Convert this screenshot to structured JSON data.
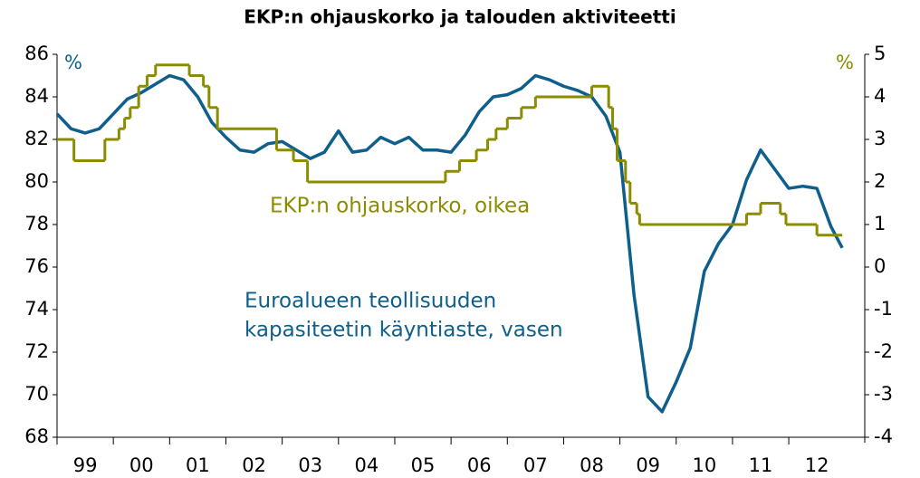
{
  "chart_data": {
    "type": "line",
    "title": "EKP:n ohjauskorko ja talouden aktiviteetti",
    "y_unit": "%",
    "y2_unit": "%",
    "annotations": [
      {
        "lines": [
          "EKP:n ohjauskorko, oikea"
        ],
        "color": "#8c8c00"
      },
      {
        "lines": [
          "Euroalueen teollisuuden",
          "kapasiteetin käyntiaste, vasen"
        ],
        "color": "#0f5f8c"
      }
    ],
    "xlim": [
      1999,
      2013.35
    ],
    "xticks": [
      {
        "value": 1999,
        "label": "99"
      },
      {
        "value": 2000,
        "label": "00"
      },
      {
        "value": 2001,
        "label": "01"
      },
      {
        "value": 2002,
        "label": "02"
      },
      {
        "value": 2003,
        "label": "03"
      },
      {
        "value": 2004,
        "label": "04"
      },
      {
        "value": 2005,
        "label": "05"
      },
      {
        "value": 2006,
        "label": "06"
      },
      {
        "value": 2007,
        "label": "07"
      },
      {
        "value": 2008,
        "label": "08"
      },
      {
        "value": 2009,
        "label": "09"
      },
      {
        "value": 2010,
        "label": "10"
      },
      {
        "value": 2011,
        "label": "11"
      },
      {
        "value": 2012,
        "label": "12"
      }
    ],
    "ylim": [
      68,
      86
    ],
    "yticks": [
      68,
      70,
      72,
      74,
      76,
      78,
      80,
      82,
      84,
      86
    ],
    "y2lim": [
      -4,
      5
    ],
    "y2ticks": [
      -4,
      -3,
      -2,
      -1,
      0,
      1,
      2,
      3,
      4,
      5
    ],
    "series": [
      {
        "name": "Euroalueen teollisuuden kapasiteetin käyntiaste",
        "color": "#0f5f8c",
        "axis": "y",
        "x": [
          1999,
          1999.25,
          1999.5,
          1999.75,
          2000,
          2000.25,
          2000.5,
          2000.75,
          2001,
          2001.25,
          2001.5,
          2001.75,
          2002,
          2002.25,
          2002.5,
          2002.75,
          2003,
          2003.25,
          2003.5,
          2003.75,
          2004,
          2004.25,
          2004.5,
          2004.75,
          2005,
          2005.25,
          2005.5,
          2005.75,
          2006,
          2006.25,
          2006.5,
          2006.75,
          2007,
          2007.25,
          2007.5,
          2007.75,
          2008,
          2008.25,
          2008.5,
          2008.75,
          2009,
          2009.25,
          2009.5,
          2009.75,
          2010,
          2010.25,
          2010.5,
          2010.75,
          2011,
          2011.25,
          2011.5,
          2011.75,
          2012,
          2012.25,
          2012.5,
          2012.75,
          2012.95
        ],
        "values": [
          83.2,
          82.5,
          82.3,
          82.5,
          83.2,
          83.9,
          84.2,
          84.6,
          85.0,
          84.8,
          84.0,
          82.8,
          82.1,
          81.5,
          81.4,
          81.8,
          81.9,
          81.5,
          81.1,
          81.4,
          82.4,
          81.4,
          81.5,
          82.1,
          81.8,
          82.1,
          81.5,
          81.5,
          81.4,
          82.2,
          83.3,
          84.0,
          84.1,
          84.4,
          85.0,
          84.8,
          84.5,
          84.3,
          84.0,
          83.1,
          81.4,
          74.7,
          69.9,
          69.2,
          70.6,
          72.2,
          75.8,
          77.1,
          78.0,
          80.1,
          81.5,
          80.6,
          79.7,
          79.8,
          79.7,
          77.9,
          76.9
        ]
      },
      {
        "name": "EKP:n ohjauskorko",
        "color": "#8c8c00",
        "axis": "y2",
        "step": true,
        "x": [
          1999,
          1999.3,
          1999.85,
          2000.1,
          2000.2,
          2000.3,
          2000.45,
          2000.6,
          2000.75,
          2001.35,
          2001.6,
          2001.7,
          2001.85,
          2002.9,
          2003.2,
          2003.45,
          2005.9,
          2006.15,
          2006.45,
          2006.65,
          2006.8,
          2007,
          2007.25,
          2007.5,
          2008.5,
          2008.8,
          2008.87,
          2008.95,
          2009.1,
          2009.18,
          2009.3,
          2009.35,
          2011.25,
          2011.5,
          2011.85,
          2011.95,
          2012.5,
          2012.95
        ],
        "values": [
          3.0,
          2.5,
          3.0,
          3.25,
          3.5,
          3.75,
          4.25,
          4.5,
          4.75,
          4.5,
          4.25,
          3.75,
          3.25,
          2.75,
          2.5,
          2.0,
          2.25,
          2.5,
          2.75,
          3.0,
          3.25,
          3.5,
          3.75,
          4.0,
          4.25,
          3.75,
          3.25,
          2.5,
          2.0,
          1.5,
          1.25,
          1.0,
          1.25,
          1.5,
          1.25,
          1.0,
          0.75,
          0.75
        ]
      }
    ]
  }
}
